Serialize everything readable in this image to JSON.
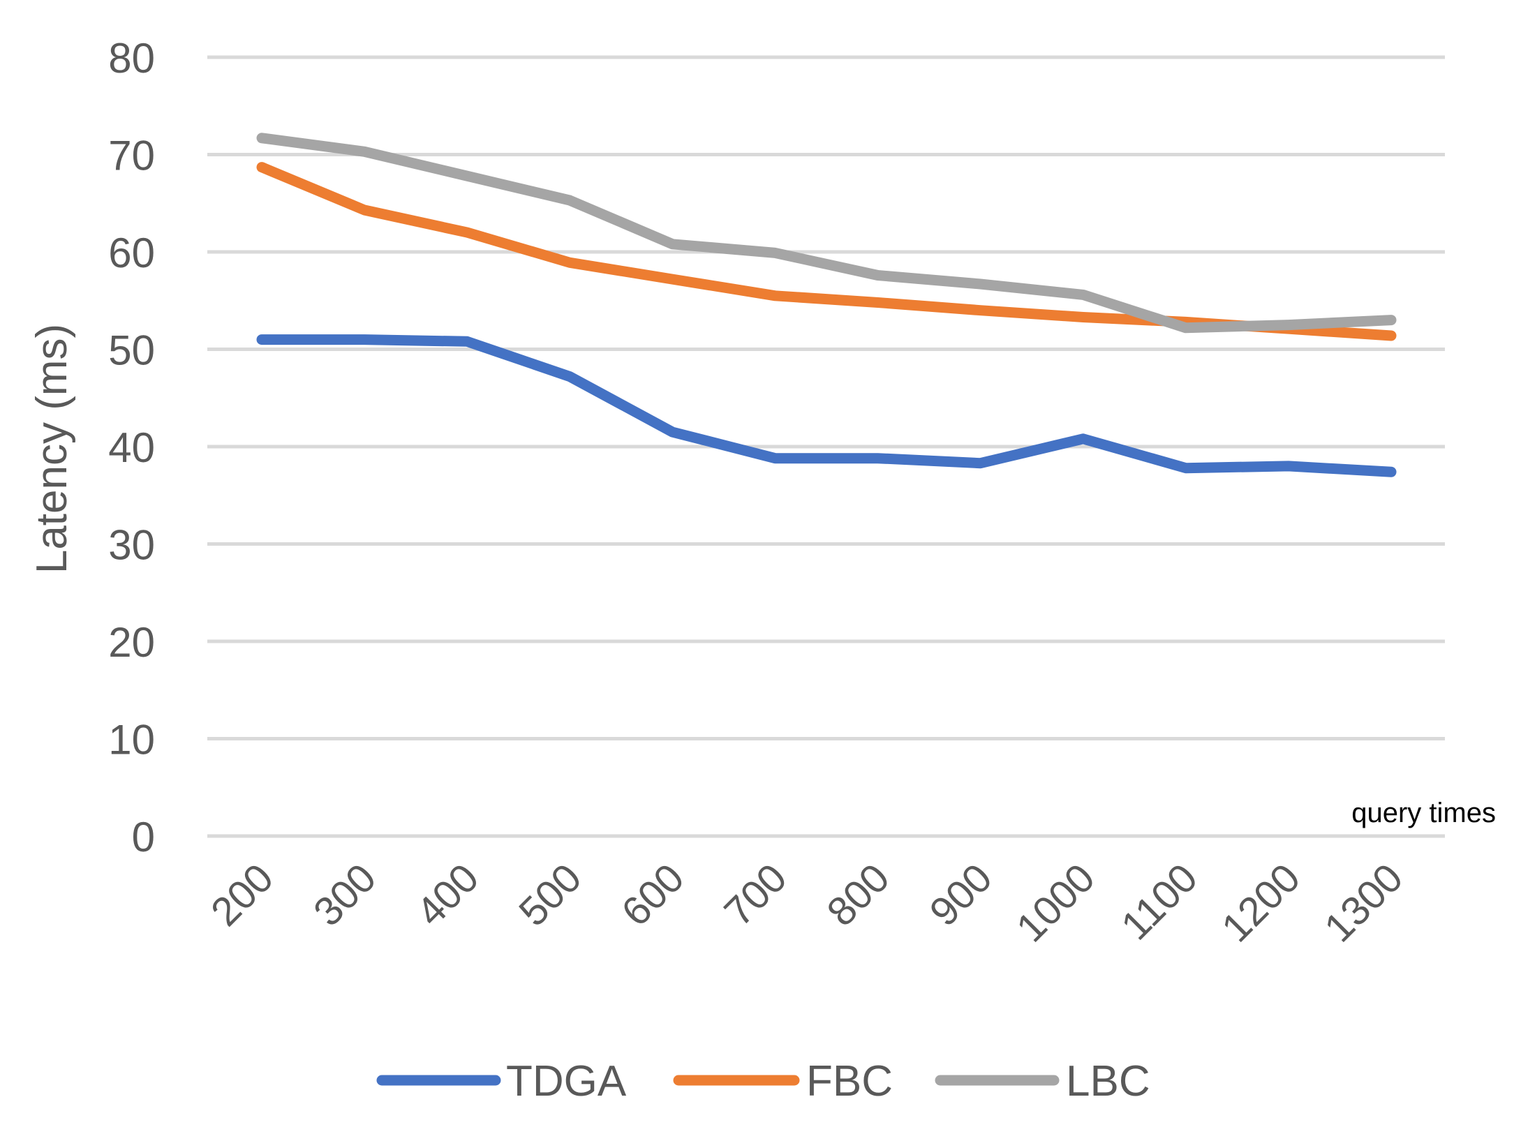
{
  "chart_data": {
    "type": "line",
    "title": "",
    "xlabel": "query times",
    "ylabel": "Latency (ms)",
    "categories": [
      "200",
      "300",
      "400",
      "500",
      "600",
      "700",
      "800",
      "900",
      "1000",
      "1100",
      "1200",
      "1300"
    ],
    "y_ticks": [
      "0",
      "10",
      "20",
      "30",
      "40",
      "50",
      "60",
      "70",
      "80"
    ],
    "ylim": [
      0,
      80
    ],
    "grid": true,
    "legend_position": "bottom",
    "series": [
      {
        "name": "TDGA",
        "color": "#4472C4",
        "values": [
          51.0,
          51.0,
          50.8,
          47.2,
          41.5,
          38.8,
          38.8,
          38.3,
          40.8,
          37.8,
          38.0,
          37.4
        ]
      },
      {
        "name": "FBC",
        "color": "#ED7D31",
        "values": [
          68.7,
          64.3,
          62.0,
          58.9,
          57.2,
          55.5,
          54.8,
          54.0,
          53.3,
          52.8,
          52.1,
          51.4
        ]
      },
      {
        "name": "LBC",
        "color": "#A5A5A5",
        "values": [
          71.7,
          70.3,
          67.8,
          65.3,
          60.8,
          59.9,
          57.6,
          56.7,
          55.6,
          52.2,
          52.5,
          53.0
        ]
      }
    ]
  }
}
